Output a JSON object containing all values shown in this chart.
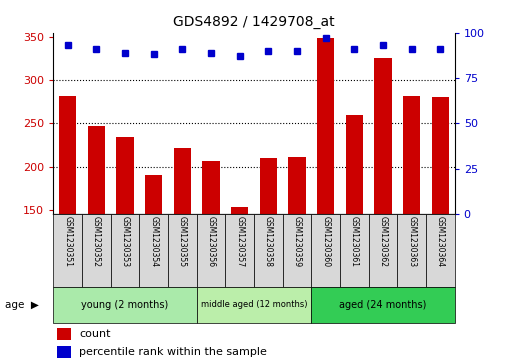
{
  "title": "GDS4892 / 1429708_at",
  "samples": [
    "GSM1230351",
    "GSM1230352",
    "GSM1230353",
    "GSM1230354",
    "GSM1230355",
    "GSM1230356",
    "GSM1230357",
    "GSM1230358",
    "GSM1230359",
    "GSM1230360",
    "GSM1230361",
    "GSM1230362",
    "GSM1230363",
    "GSM1230364"
  ],
  "counts": [
    282,
    247,
    234,
    190,
    221,
    206,
    153,
    210,
    211,
    349,
    260,
    326,
    282,
    280
  ],
  "percentiles": [
    93,
    91,
    89,
    88,
    91,
    89,
    87,
    90,
    90,
    97,
    91,
    93,
    91,
    91
  ],
  "ylim_left": [
    145,
    355
  ],
  "ylim_right": [
    0,
    100
  ],
  "yticks_left": [
    150,
    200,
    250,
    300,
    350
  ],
  "yticks_right": [
    0,
    25,
    50,
    75,
    100
  ],
  "groups": [
    {
      "label": "young (2 months)",
      "start": 0,
      "end": 5,
      "color": "#AAEAAA"
    },
    {
      "label": "middle aged (12 months)",
      "start": 5,
      "end": 9,
      "color": "#BBEEAA"
    },
    {
      "label": "aged (24 months)",
      "start": 9,
      "end": 14,
      "color": "#33CC55"
    }
  ],
  "bar_color": "#CC0000",
  "dot_color": "#0000CC",
  "grid_color": "#000000",
  "tick_color_left": "#CC0000",
  "tick_color_right": "#0000CC",
  "bg_color": "#D8D8D8",
  "plot_bg": "#FFFFFF",
  "age_label": "age",
  "legend_count": "count",
  "legend_percentile": "percentile rank within the sample"
}
